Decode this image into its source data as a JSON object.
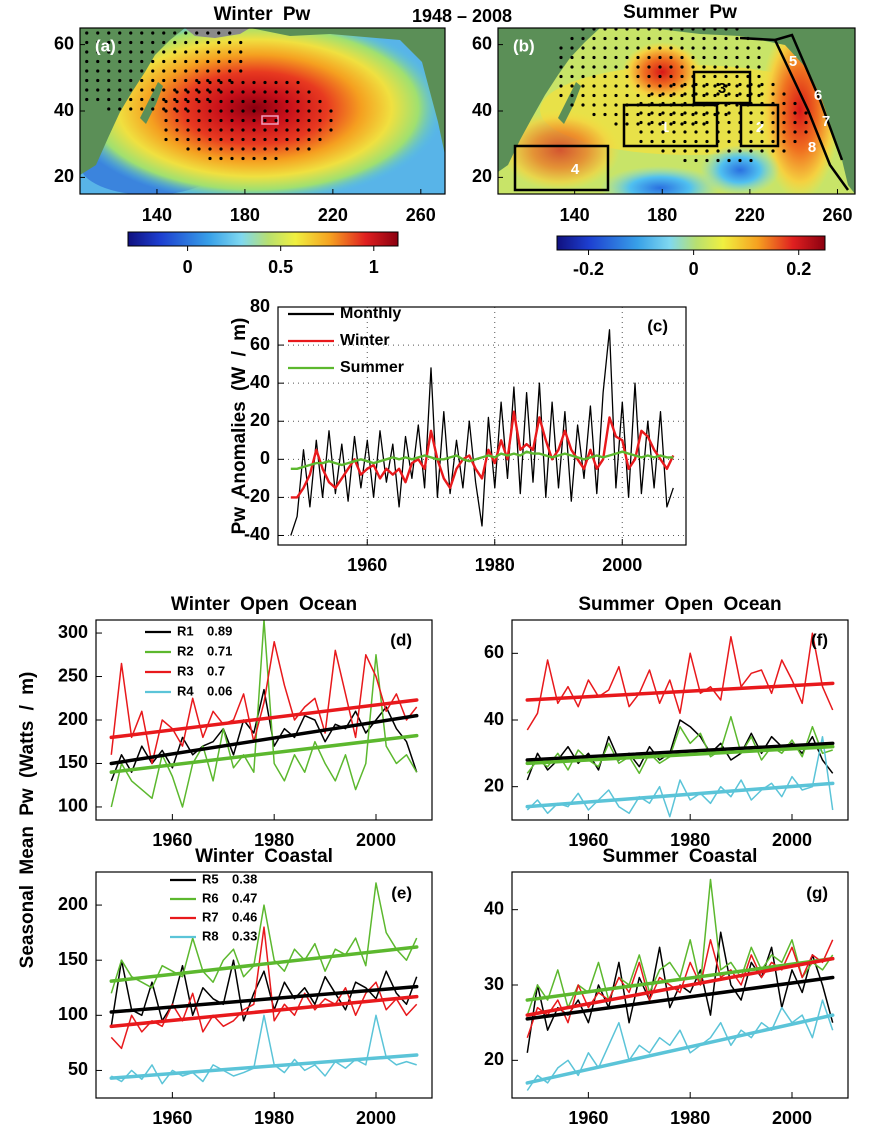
{
  "chart_data": [
    {
      "type": "map",
      "title": "Winter Pw",
      "subtitle": "1948 – 2008",
      "label": "(a)",
      "xlim": [
        105,
        271
      ],
      "ylim": [
        15,
        65
      ],
      "xticks": [
        140,
        180,
        220,
        260
      ],
      "yticks": [
        20,
        40,
        60
      ],
      "colorbar": {
        "lim": [
          -0.32,
          1.13
        ],
        "ticks": [
          0,
          0.5,
          1
        ]
      }
    },
    {
      "type": "map",
      "title": "Summer Pw",
      "label": "(b)",
      "xlim": [
        105,
        268
      ],
      "ylim": [
        15,
        65
      ],
      "xticks": [
        140,
        180,
        220,
        260
      ],
      "yticks": [
        20,
        40,
        60
      ],
      "colorbar": {
        "lim": [
          -0.26,
          0.25
        ],
        "ticks": [
          -0.2,
          0,
          0.2
        ]
      },
      "regions": [
        "1",
        "2",
        "3",
        "4",
        "5",
        "6",
        "7",
        "8"
      ]
    },
    {
      "type": "line",
      "label": "(c)",
      "ylabel": "Pw Anomalies (W / m)",
      "grid": true,
      "xlim": [
        1946,
        2010
      ],
      "ylim": [
        -45,
        80
      ],
      "xticks": [
        1960,
        1980,
        2000
      ],
      "yticks": [
        -40,
        -20,
        0,
        20,
        40,
        60,
        80
      ],
      "x": [
        1948,
        1949,
        1950,
        1951,
        1952,
        1953,
        1954,
        1955,
        1956,
        1957,
        1958,
        1959,
        1960,
        1961,
        1962,
        1963,
        1964,
        1965,
        1966,
        1967,
        1968,
        1969,
        1970,
        1971,
        1972,
        1973,
        1974,
        1975,
        1976,
        1977,
        1978,
        1979,
        1980,
        1981,
        1982,
        1983,
        1984,
        1985,
        1986,
        1987,
        1988,
        1989,
        1990,
        1991,
        1992,
        1993,
        1994,
        1995,
        1996,
        1997,
        1998,
        1999,
        2000,
        2001,
        2002,
        2003,
        2004,
        2005,
        2006,
        2007,
        2008
      ],
      "series": [
        {
          "name": "Monthly",
          "color": "#000000",
          "values": [
            -40,
            -30,
            5,
            -25,
            10,
            -20,
            15,
            -18,
            8,
            -22,
            12,
            -15,
            10,
            -20,
            15,
            -12,
            8,
            -25,
            12,
            -10,
            18,
            -15,
            48,
            -20,
            25,
            -18,
            10,
            -15,
            20,
            -12,
            -35,
            22,
            -15,
            30,
            -10,
            38,
            -18,
            35,
            -12,
            40,
            -20,
            30,
            -15,
            25,
            -22,
            18,
            -10,
            28,
            -18,
            35,
            68,
            -15,
            30,
            -20,
            40,
            -18,
            20,
            -15,
            25,
            -25,
            -15
          ]
        },
        {
          "name": "Winter",
          "color": "#e8191c",
          "values": [
            -20,
            -20,
            -15,
            -8,
            5,
            -5,
            -12,
            -15,
            -10,
            -5,
            0,
            -8,
            -5,
            -3,
            -10,
            -5,
            -8,
            -5,
            -12,
            -2,
            0,
            -5,
            15,
            0,
            -10,
            -15,
            -5,
            0,
            2,
            -5,
            -10,
            5,
            -2,
            10,
            0,
            25,
            5,
            8,
            5,
            22,
            10,
            0,
            5,
            15,
            5,
            0,
            -5,
            5,
            -5,
            0,
            22,
            12,
            10,
            -5,
            0,
            15,
            12,
            5,
            0,
            -5,
            2
          ]
        },
        {
          "name": "Summer",
          "color": "#5cb82e",
          "values": [
            -5,
            -5,
            -4,
            -3,
            -2,
            -2,
            -1,
            -2,
            -3,
            -2,
            -1,
            0,
            -1,
            -2,
            -1,
            0,
            1,
            0,
            1,
            0,
            1,
            2,
            1,
            0,
            0,
            1,
            2,
            0,
            -1,
            0,
            1,
            2,
            1,
            3,
            2,
            3,
            2,
            4,
            3,
            3,
            2,
            1,
            2,
            3,
            2,
            1,
            0,
            1,
            2,
            1,
            2,
            3,
            4,
            3,
            2,
            1,
            2,
            1,
            2,
            1,
            1
          ]
        }
      ]
    },
    {
      "type": "line",
      "title": "Winter Open Ocean",
      "label": "(d)",
      "ylabel": "Seasonal Mean Pw (Watts / m)",
      "xlim": [
        1945,
        2011
      ],
      "ylim": [
        85,
        315
      ],
      "xticks": [
        1960,
        1980,
        2000
      ],
      "yticks": [
        100,
        150,
        200,
        250,
        300
      ],
      "x": [
        1948,
        1950,
        1952,
        1954,
        1956,
        1958,
        1960,
        1962,
        1964,
        1966,
        1968,
        1970,
        1972,
        1974,
        1976,
        1978,
        1980,
        1982,
        1984,
        1986,
        1988,
        1990,
        1992,
        1994,
        1996,
        1998,
        2000,
        2002,
        2004,
        2006,
        2008
      ],
      "series": [
        {
          "name": "R1",
          "r": 0.89,
          "color": "#000000",
          "values": [
            130,
            160,
            140,
            170,
            150,
            165,
            145,
            180,
            160,
            170,
            175,
            190,
            160,
            200,
            185,
            235,
            170,
            190,
            180,
            205,
            200,
            175,
            195,
            190,
            210,
            185,
            200,
            215,
            190,
            175,
            140
          ],
          "trend": [
            150,
            205
          ]
        },
        {
          "name": "R2",
          "r": 0.71,
          "color": "#5cb82e",
          "values": [
            100,
            150,
            130,
            120,
            110,
            160,
            135,
            100,
            150,
            170,
            130,
            190,
            145,
            160,
            140,
            315,
            150,
            130,
            160,
            140,
            175,
            150,
            130,
            160,
            120,
            150,
            275,
            170,
            150,
            160,
            140
          ],
          "trend": [
            140,
            182
          ]
        },
        {
          "name": "R3",
          "r": 0.7,
          "color": "#e8191c",
          "values": [
            160,
            265,
            180,
            210,
            150,
            200,
            190,
            170,
            225,
            180,
            210,
            195,
            200,
            230,
            175,
            220,
            290,
            240,
            200,
            215,
            225,
            185,
            280,
            230,
            180,
            275,
            250,
            210,
            230,
            200,
            215
          ],
          "trend": [
            180,
            223
          ]
        },
        {
          "name": "R4",
          "r": 0.06,
          "color": "#5bc4d8"
        }
      ]
    },
    {
      "type": "line",
      "title": "Winter Coastal",
      "label": "(e)",
      "xlim": [
        1945,
        2011
      ],
      "ylim": [
        25,
        230
      ],
      "xticks": [
        1960,
        1980,
        2000
      ],
      "yticks": [
        50,
        100,
        150,
        200
      ],
      "x": [
        1948,
        1950,
        1952,
        1954,
        1956,
        1958,
        1960,
        1962,
        1964,
        1966,
        1968,
        1970,
        1972,
        1974,
        1976,
        1978,
        1980,
        1982,
        1984,
        1986,
        1988,
        1990,
        1992,
        1994,
        1996,
        1998,
        2000,
        2002,
        2004,
        2006,
        2008
      ],
      "series": [
        {
          "name": "R5",
          "r": 0.38,
          "color": "#000000",
          "values": [
            90,
            150,
            105,
            100,
            130,
            95,
            110,
            145,
            100,
            125,
            115,
            110,
            150,
            95,
            120,
            140,
            105,
            130,
            115,
            125,
            110,
            135,
            120,
            105,
            130,
            125,
            115,
            140,
            120,
            110,
            135
          ],
          "trend": [
            103,
            126
          ]
        },
        {
          "name": "R6",
          "r": 0.47,
          "color": "#5cb82e",
          "values": [
            120,
            150,
            135,
            130,
            125,
            145,
            140,
            135,
            170,
            140,
            130,
            150,
            160,
            135,
            145,
            200,
            150,
            140,
            160,
            150,
            165,
            140,
            160,
            155,
            170,
            145,
            220,
            175,
            160,
            150,
            170
          ],
          "trend": [
            131,
            162
          ]
        },
        {
          "name": "R7",
          "r": 0.46,
          "color": "#e8191c",
          "values": [
            80,
            70,
            100,
            85,
            95,
            90,
            110,
            95,
            120,
            85,
            100,
            90,
            95,
            105,
            110,
            180,
            95,
            110,
            100,
            120,
            105,
            115,
            110,
            125,
            100,
            120,
            130,
            105,
            115,
            100,
            110
          ],
          "trend": [
            90,
            117
          ]
        },
        {
          "name": "R8",
          "r": 0.33,
          "color": "#5bc4d8",
          "values": [
            45,
            40,
            50,
            42,
            55,
            38,
            50,
            45,
            48,
            40,
            55,
            50,
            45,
            48,
            52,
            100,
            55,
            48,
            60,
            50,
            55,
            45,
            58,
            52,
            60,
            55,
            100,
            62,
            55,
            58,
            55
          ],
          "trend": [
            43,
            64
          ]
        }
      ]
    },
    {
      "type": "line",
      "title": "Summer Open Ocean",
      "label": "(f)",
      "xlim": [
        1945,
        2011
      ],
      "ylim": [
        10,
        70
      ],
      "xticks": [
        1960,
        1980,
        2000
      ],
      "yticks": [
        20,
        40,
        60
      ],
      "x": [
        1948,
        1950,
        1952,
        1954,
        1956,
        1958,
        1960,
        1962,
        1964,
        1966,
        1968,
        1970,
        1972,
        1974,
        1976,
        1978,
        1980,
        1982,
        1984,
        1986,
        1988,
        1990,
        1992,
        1994,
        1996,
        1998,
        2000,
        2002,
        2004,
        2006,
        2008
      ],
      "series": [
        {
          "color": "#000000",
          "values": [
            22,
            30,
            25,
            28,
            32,
            27,
            30,
            25,
            35,
            28,
            30,
            26,
            32,
            28,
            30,
            40,
            38,
            35,
            30,
            33,
            28,
            30,
            36,
            30,
            35,
            32,
            33,
            30,
            35,
            28,
            24
          ],
          "trend": [
            28,
            33
          ]
        },
        {
          "color": "#5cb82e",
          "values": [
            24,
            28,
            26,
            30,
            25,
            31,
            28,
            26,
            33,
            27,
            29,
            24,
            30,
            27,
            29,
            38,
            33,
            36,
            29,
            31,
            41,
            30,
            35,
            28,
            32,
            30,
            34,
            29,
            38,
            30,
            31
          ],
          "trend": [
            27,
            32
          ]
        },
        {
          "color": "#e8191c",
          "values": [
            37,
            42,
            58,
            45,
            50,
            44,
            52,
            47,
            49,
            56,
            44,
            48,
            55,
            45,
            52,
            42,
            60,
            48,
            50,
            46,
            65,
            50,
            54,
            55,
            48,
            58,
            52,
            45,
            66,
            50,
            43
          ],
          "trend": [
            46,
            51
          ]
        },
        {
          "color": "#5bc4d8",
          "values": [
            13,
            16,
            12,
            15,
            14,
            18,
            13,
            16,
            19,
            14,
            12,
            17,
            15,
            20,
            11,
            22,
            16,
            18,
            15,
            20,
            17,
            22,
            16,
            19,
            21,
            17,
            23,
            19,
            20,
            35,
            13
          ],
          "trend": [
            14,
            21
          ]
        }
      ]
    },
    {
      "type": "line",
      "title": "Summer Coastal",
      "label": "(g)",
      "xlim": [
        1945,
        2011
      ],
      "ylim": [
        15,
        45
      ],
      "xticks": [
        1960,
        1980,
        2000
      ],
      "yticks": [
        20,
        30,
        40
      ],
      "x": [
        1948,
        1950,
        1952,
        1954,
        1956,
        1958,
        1960,
        1962,
        1964,
        1966,
        1968,
        1970,
        1972,
        1974,
        1976,
        1978,
        1980,
        1982,
        1984,
        1986,
        1988,
        1990,
        1992,
        1994,
        1996,
        1998,
        2000,
        2002,
        2004,
        2006,
        2008
      ],
      "series": [
        {
          "color": "#000000",
          "values": [
            21,
            30,
            24,
            27,
            26,
            28,
            25,
            30,
            27,
            33,
            25,
            31,
            28,
            35,
            27,
            30,
            29,
            32,
            26,
            37,
            30,
            28,
            33,
            31,
            35,
            27,
            32,
            29,
            34,
            30,
            25
          ],
          "trend": [
            25.5,
            31
          ]
        },
        {
          "color": "#5cb82e",
          "values": [
            26,
            30,
            28,
            32,
            27,
            30,
            29,
            33,
            28,
            31,
            30,
            34,
            29,
            32,
            33,
            31,
            36,
            30,
            44,
            32,
            33,
            31,
            35,
            32,
            34,
            33,
            36,
            31,
            33,
            32,
            34
          ],
          "trend": [
            28,
            33.5
          ]
        },
        {
          "color": "#e8191c",
          "values": [
            23,
            27,
            26,
            28,
            25,
            30,
            27,
            29,
            28,
            31,
            29,
            33,
            28,
            31,
            30,
            29,
            33,
            30,
            36,
            31,
            32,
            30,
            34,
            31,
            33,
            32,
            35,
            31,
            34,
            33,
            36
          ],
          "trend": [
            26,
            33.5
          ]
        },
        {
          "color": "#5bc4d8",
          "values": [
            16,
            18,
            17,
            19,
            20,
            18,
            21,
            19,
            22,
            25,
            20,
            22,
            21,
            23,
            22,
            24,
            21,
            22,
            23,
            25,
            22,
            24,
            23,
            25,
            24,
            27,
            25,
            26,
            23,
            28,
            24
          ],
          "trend": [
            17,
            26
          ]
        }
      ]
    }
  ]
}
